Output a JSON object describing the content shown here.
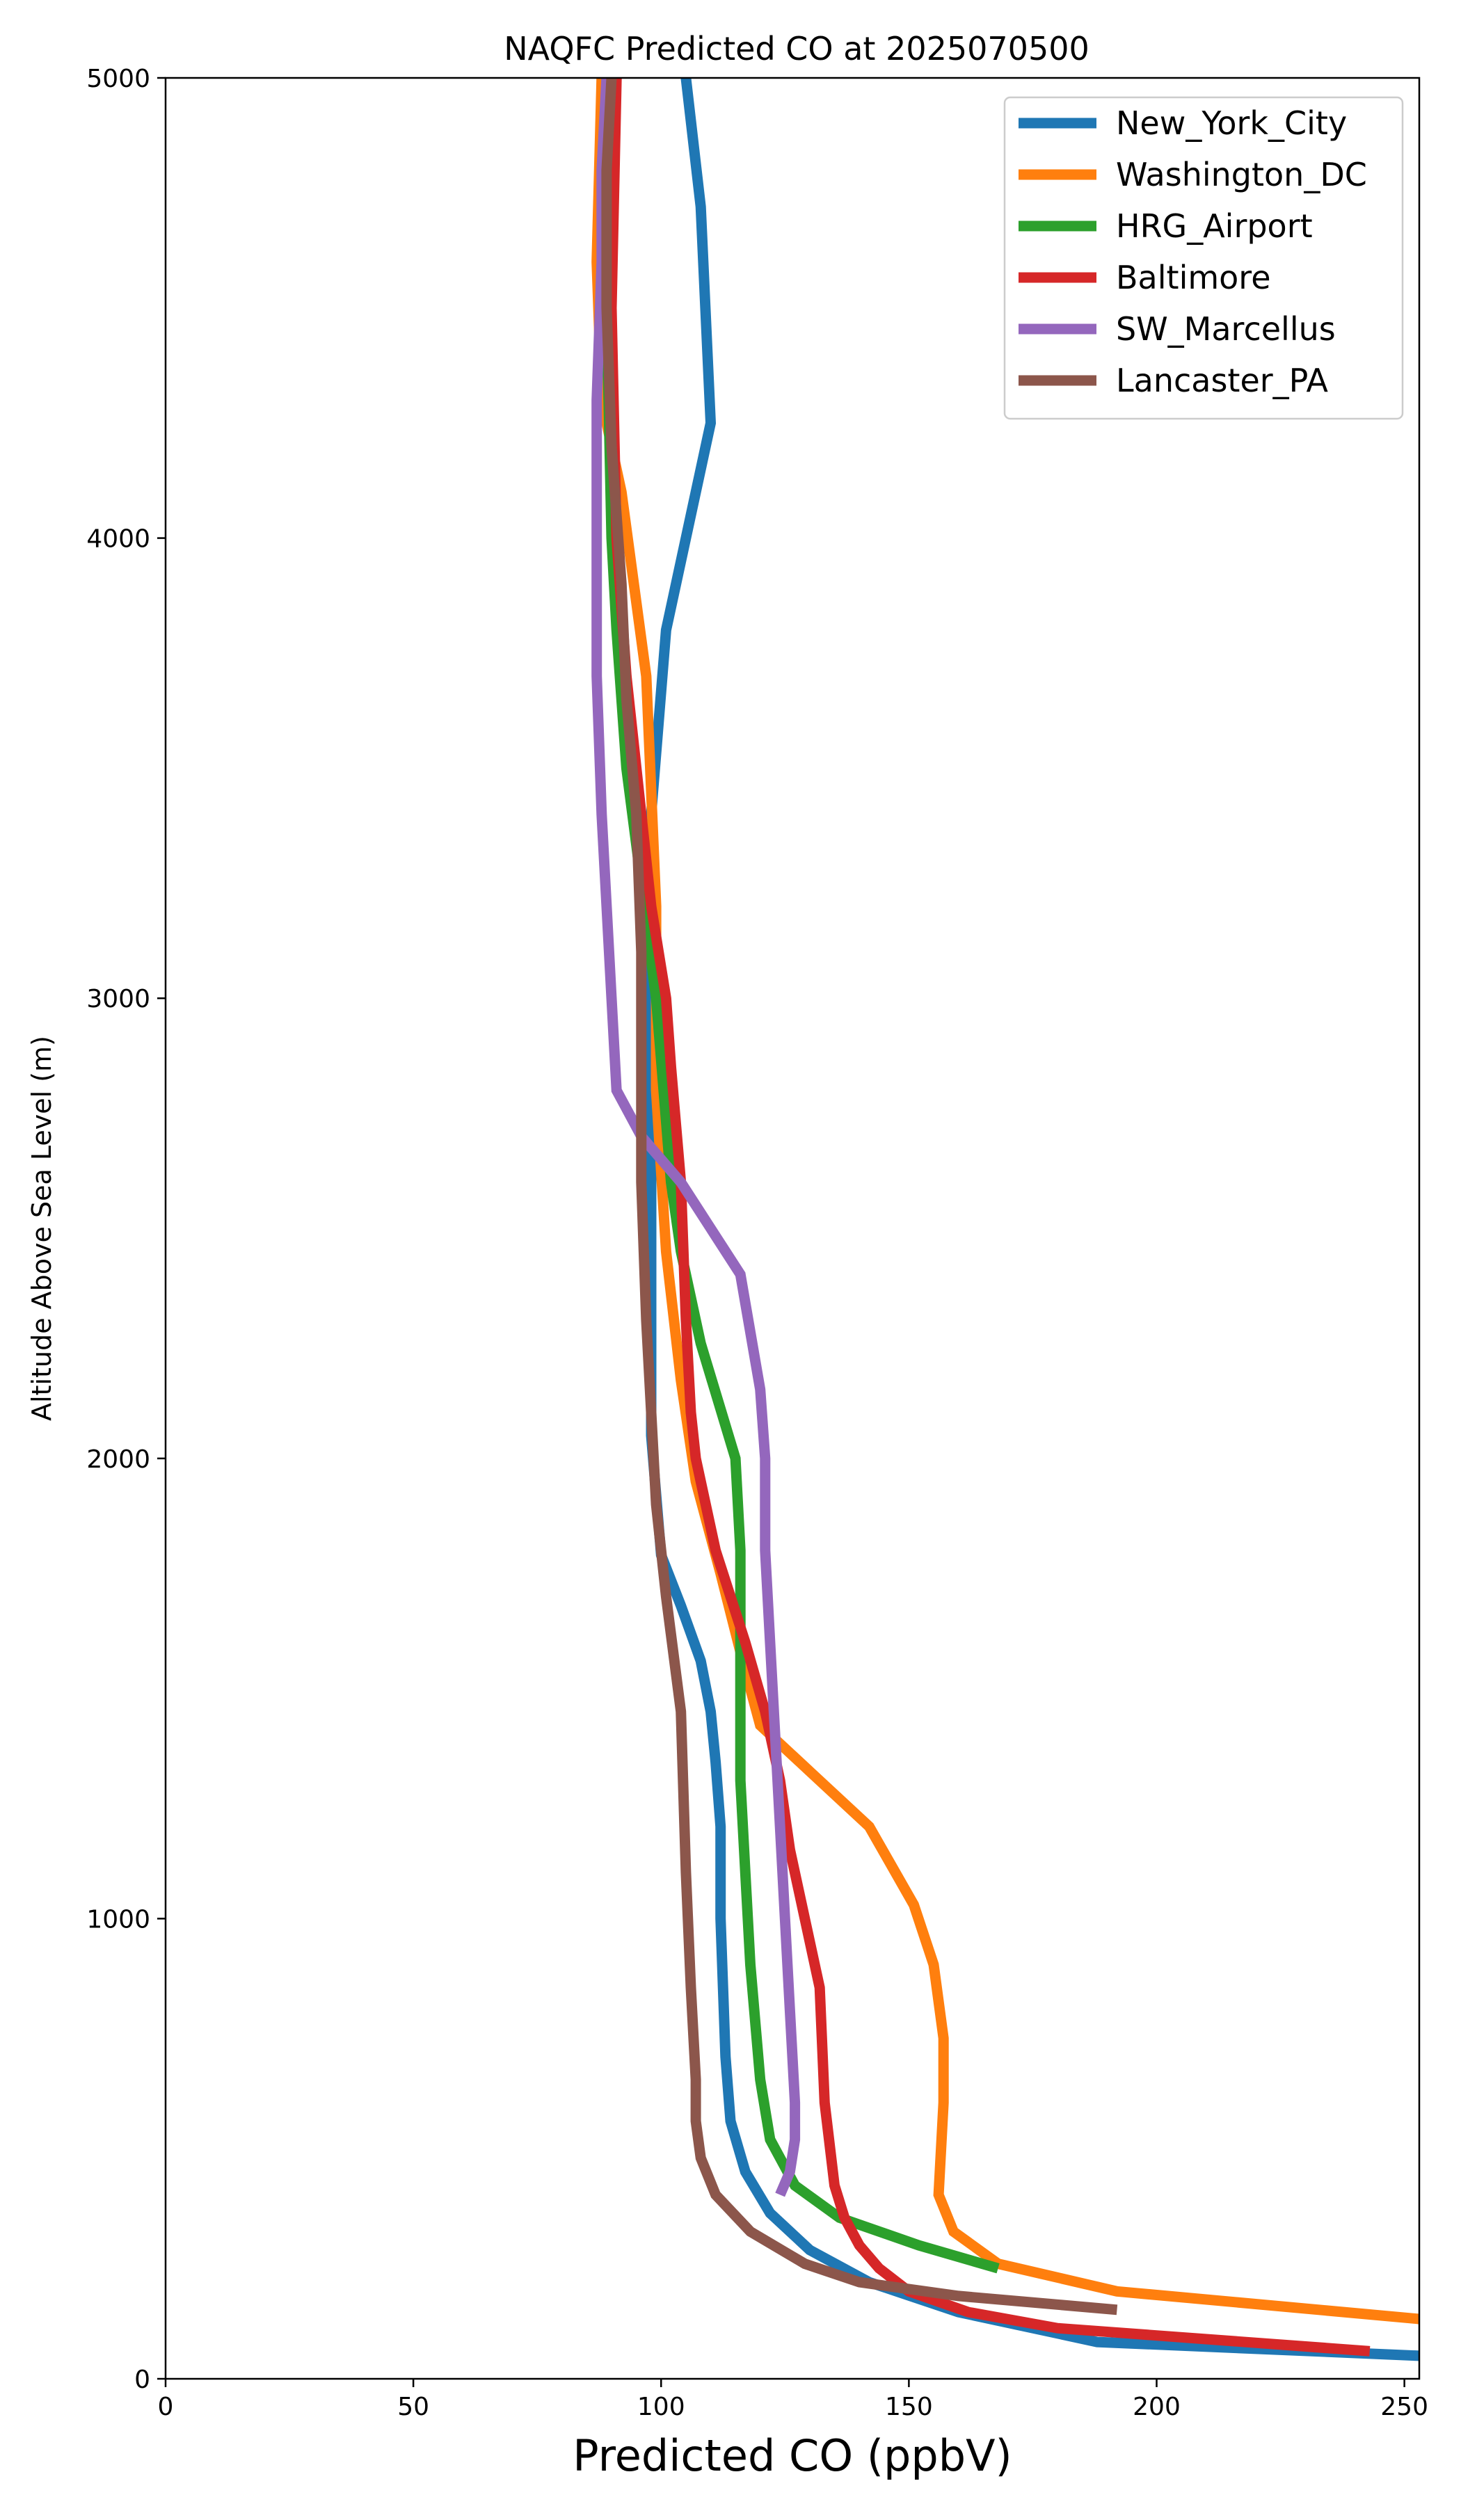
{
  "chart_data": {
    "type": "line",
    "title": "NAQFC Predicted CO at 2025070500",
    "xlabel": "Predicted CO (ppbV)",
    "ylabel": "Altitude Above Sea Level (m)",
    "xlim": [
      0,
      253
    ],
    "ylim": [
      0,
      5000
    ],
    "xticks": [
      0,
      50,
      100,
      150,
      200,
      250
    ],
    "yticks": [
      0,
      1000,
      2000,
      3000,
      4000,
      5000
    ],
    "grid": false,
    "legend_position": "upper right",
    "series": [
      {
        "name": "New_York_City",
        "color": "#1f77b4",
        "points": [
          [
            253,
            50
          ],
          [
            188,
            80
          ],
          [
            160,
            145
          ],
          [
            142,
            210
          ],
          [
            130,
            280
          ],
          [
            122,
            360
          ],
          [
            117,
            450
          ],
          [
            114,
            560
          ],
          [
            113,
            700
          ],
          [
            112,
            1000
          ],
          [
            112,
            1200
          ],
          [
            111,
            1340
          ],
          [
            110,
            1450
          ],
          [
            108,
            1560
          ],
          [
            104,
            1680
          ],
          [
            100,
            1790
          ],
          [
            98,
            2050
          ],
          [
            98,
            2300
          ],
          [
            98,
            2700
          ],
          [
            98,
            3000
          ],
          [
            98,
            3400
          ],
          [
            101,
            3800
          ],
          [
            110,
            4250
          ],
          [
            108,
            4720
          ],
          [
            105,
            5000
          ]
        ]
      },
      {
        "name": "Washington_DC",
        "color": "#ff7f0e",
        "points": [
          [
            253,
            130
          ],
          [
            192,
            190
          ],
          [
            168,
            250
          ],
          [
            159,
            320
          ],
          [
            156,
            400
          ],
          [
            157,
            600
          ],
          [
            157,
            740
          ],
          [
            155,
            900
          ],
          [
            151,
            1030
          ],
          [
            142,
            1200
          ],
          [
            130,
            1320
          ],
          [
            120,
            1420
          ],
          [
            116,
            1580
          ],
          [
            112,
            1750
          ],
          [
            107,
            1950
          ],
          [
            104,
            2170
          ],
          [
            101,
            2450
          ],
          [
            99,
            2800
          ],
          [
            99,
            3200
          ],
          [
            97,
            3700
          ],
          [
            92,
            4100
          ],
          [
            88,
            4300
          ],
          [
            87,
            4600
          ],
          [
            88,
            5000
          ]
        ]
      },
      {
        "name": "HRG_Airport",
        "color": "#2ca02c",
        "points": [
          [
            168,
            240
          ],
          [
            152,
            290
          ],
          [
            136,
            350
          ],
          [
            127,
            420
          ],
          [
            122,
            520
          ],
          [
            120,
            650
          ],
          [
            118,
            900
          ],
          [
            117,
            1100
          ],
          [
            116,
            1300
          ],
          [
            116,
            1600
          ],
          [
            116,
            1800
          ],
          [
            115,
            2000
          ],
          [
            108,
            2250
          ],
          [
            104,
            2450
          ],
          [
            102,
            2600
          ],
          [
            99,
            3000
          ],
          [
            93,
            3500
          ],
          [
            91,
            3800
          ],
          [
            90,
            4000
          ],
          [
            89,
            4500
          ],
          [
            89,
            5000
          ]
        ]
      },
      {
        "name": "Baltimore",
        "color": "#d62728",
        "points": [
          [
            243,
            60
          ],
          [
            180,
            110
          ],
          [
            162,
            145
          ],
          [
            150,
            190
          ],
          [
            144,
            240
          ],
          [
            140,
            290
          ],
          [
            137,
            350
          ],
          [
            135,
            420
          ],
          [
            133,
            600
          ],
          [
            132,
            850
          ],
          [
            129,
            1000
          ],
          [
            126,
            1150
          ],
          [
            124,
            1300
          ],
          [
            121,
            1450
          ],
          [
            117,
            1600
          ],
          [
            111,
            1800
          ],
          [
            107,
            2000
          ],
          [
            106,
            2100
          ],
          [
            105,
            2300
          ],
          [
            104,
            2600
          ],
          [
            102,
            2850
          ],
          [
            101,
            3000
          ],
          [
            98,
            3200
          ],
          [
            96,
            3400
          ],
          [
            93,
            3700
          ],
          [
            91,
            4000
          ],
          [
            90,
            4500
          ],
          [
            91,
            5000
          ]
        ]
      },
      {
        "name": "SW_Marcellus",
        "color": "#9467bd",
        "points": [
          [
            124,
            400
          ],
          [
            126,
            450
          ],
          [
            127,
            520
          ],
          [
            127,
            600
          ],
          [
            126,
            800
          ],
          [
            125,
            1000
          ],
          [
            124,
            1200
          ],
          [
            123,
            1400
          ],
          [
            122,
            1600
          ],
          [
            121,
            1800
          ],
          [
            121,
            1900
          ],
          [
            121,
            2000
          ],
          [
            120,
            2150
          ],
          [
            116,
            2400
          ],
          [
            104,
            2600
          ],
          [
            96,
            2700
          ],
          [
            91,
            2800
          ],
          [
            90,
            3000
          ],
          [
            89,
            3200
          ],
          [
            88,
            3400
          ],
          [
            87,
            3700
          ],
          [
            87,
            4000
          ],
          [
            87,
            4300
          ],
          [
            88,
            4600
          ],
          [
            88,
            4800
          ],
          [
            89,
            5000
          ]
        ]
      },
      {
        "name": "Lancaster_PA",
        "color": "#8c564b",
        "points": [
          [
            192,
            150
          ],
          [
            160,
            180
          ],
          [
            140,
            210
          ],
          [
            129,
            250
          ],
          [
            118,
            320
          ],
          [
            111,
            400
          ],
          [
            108,
            480
          ],
          [
            107,
            560
          ],
          [
            107,
            650
          ],
          [
            106,
            850
          ],
          [
            105,
            1100
          ],
          [
            104,
            1450
          ],
          [
            101,
            1700
          ],
          [
            99,
            1900
          ],
          [
            98,
            2100
          ],
          [
            97,
            2300
          ],
          [
            96,
            2600
          ],
          [
            96,
            2800
          ],
          [
            96,
            3100
          ],
          [
            95,
            3400
          ],
          [
            93,
            3650
          ],
          [
            92,
            3900
          ],
          [
            90,
            4200
          ],
          [
            89,
            4500
          ],
          [
            89,
            4800
          ],
          [
            90,
            5000
          ]
        ]
      }
    ]
  }
}
